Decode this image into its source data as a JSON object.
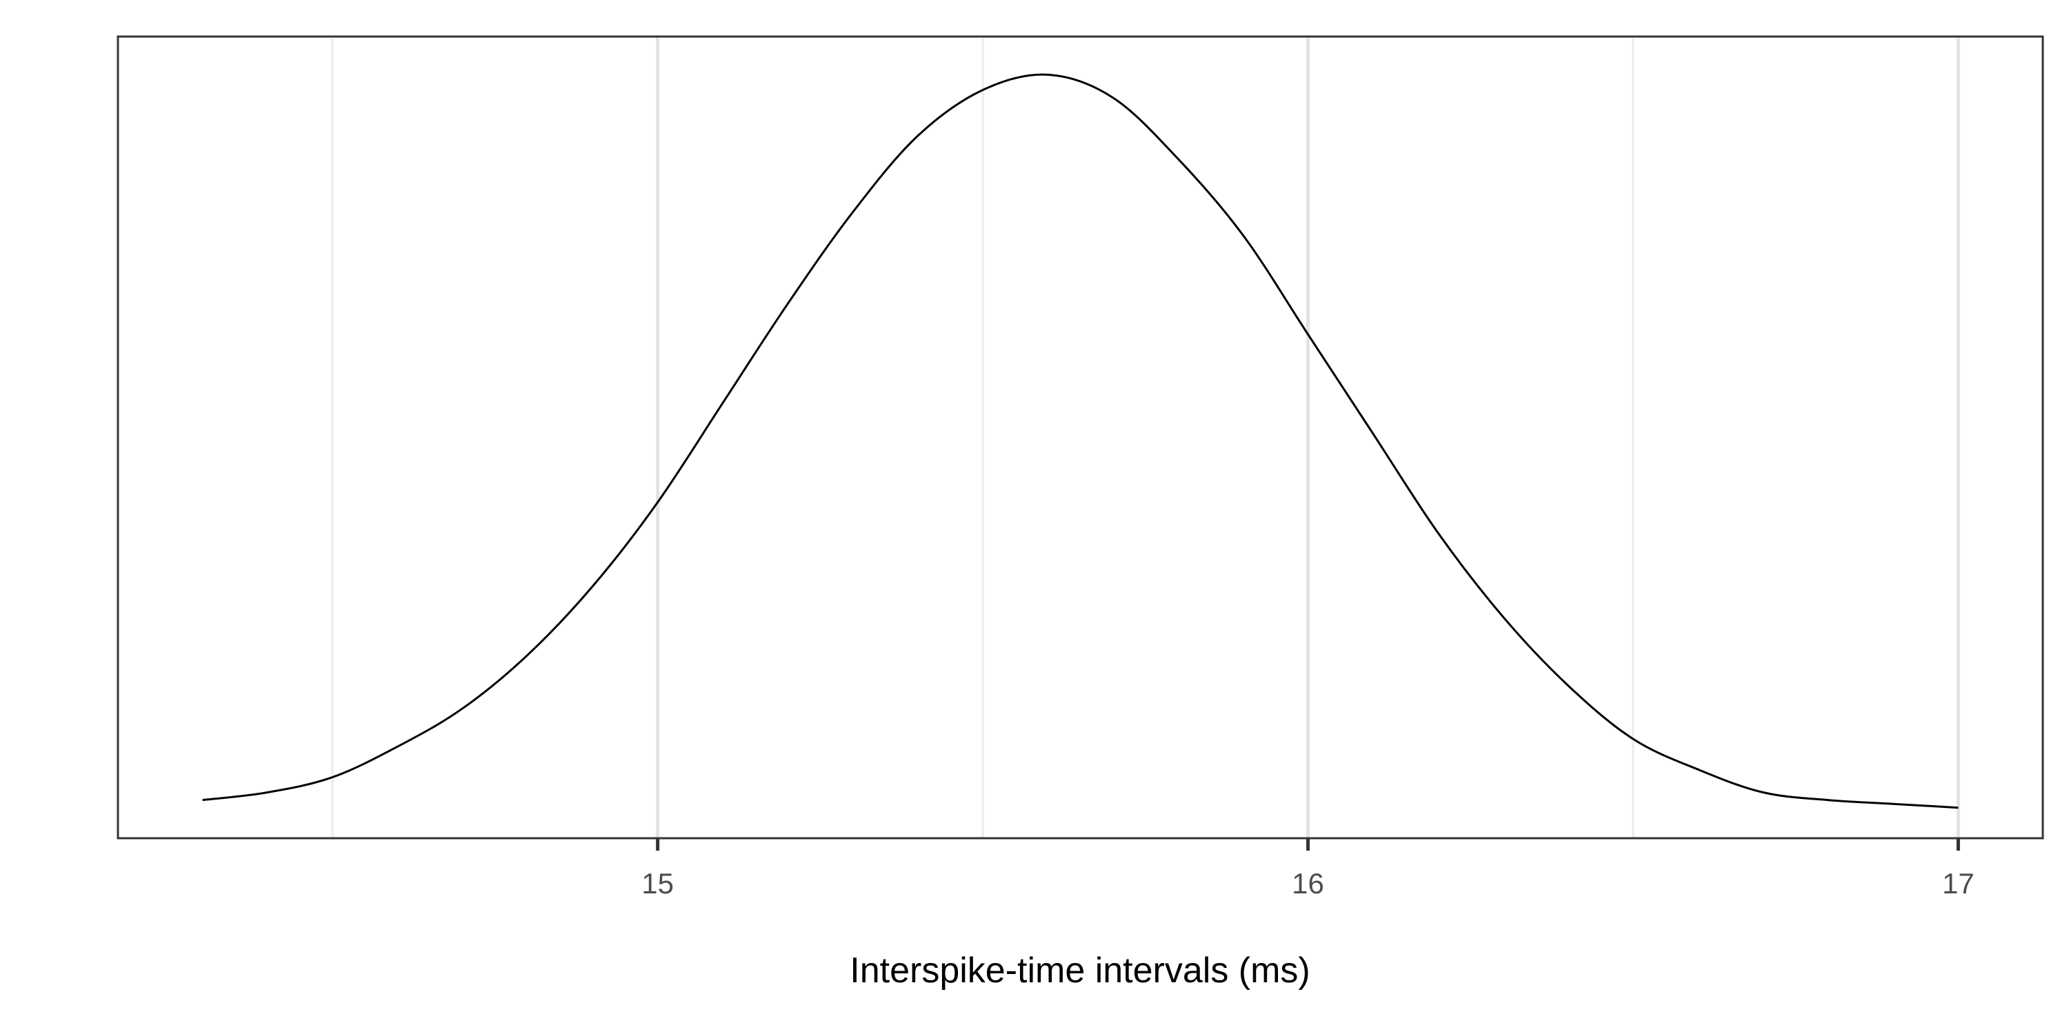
{
  "chart_data": {
    "type": "line",
    "title": "",
    "xlabel": "Interspike-time intervals (ms)",
    "ylabel": "",
    "xlim": [
      14.17,
      17.13
    ],
    "ylim": [
      0,
      1.05
    ],
    "x_ticks": [
      15,
      16,
      17
    ],
    "x_tick_labels": [
      "15",
      "16",
      "17"
    ],
    "x_minor_grid": [
      14.5,
      15.5,
      16.5
    ],
    "grid": "vertical only",
    "legend": "none",
    "series": [
      {
        "style": "density curve",
        "x": [
          14.3,
          14.4,
          14.5,
          14.6,
          14.7,
          14.8,
          14.9,
          15.0,
          15.1,
          15.2,
          15.3,
          15.4,
          15.5,
          15.6,
          15.7,
          15.8,
          15.9,
          16.0,
          16.1,
          16.2,
          16.3,
          16.4,
          16.5,
          16.6,
          16.7,
          16.8,
          16.9,
          17.0
        ],
        "y": [
          0.05,
          0.06,
          0.08,
          0.12,
          0.17,
          0.24,
          0.33,
          0.44,
          0.57,
          0.7,
          0.82,
          0.92,
          0.98,
          1.0,
          0.97,
          0.89,
          0.79,
          0.66,
          0.53,
          0.4,
          0.29,
          0.2,
          0.13,
          0.09,
          0.06,
          0.05,
          0.045,
          0.04
        ]
      }
    ],
    "colors": {
      "line": "#000000",
      "panel_border": "#333333",
      "grid_major": "#e3e3e3",
      "grid_minor": "#ececec"
    }
  }
}
